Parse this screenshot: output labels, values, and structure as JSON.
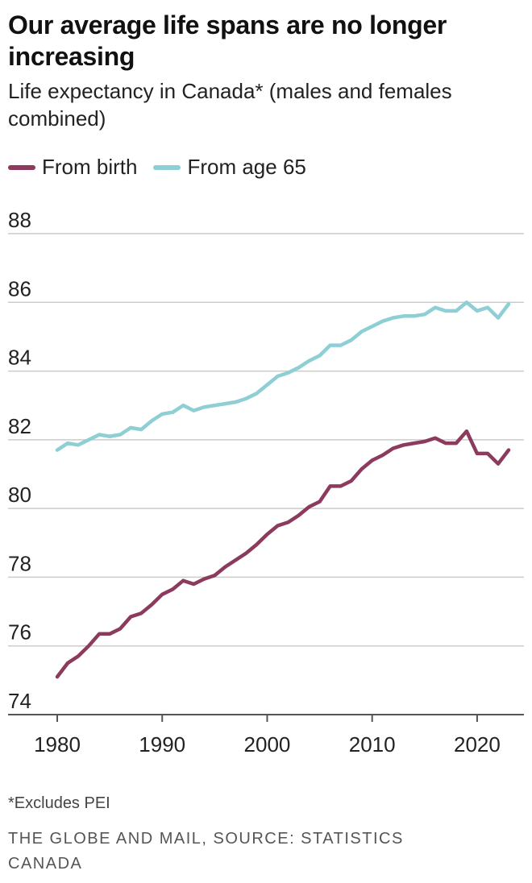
{
  "title": "Our average life spans are no longer increasing",
  "subtitle": "Life expectancy in Canada* (males and females combined)",
  "footnote": "*Excludes PEI",
  "source": "THE GLOBE AND MAIL, SOURCE: STATISTICS CANADA",
  "colors": {
    "birth": "#8c3b5e",
    "age65": "#8ecfd6",
    "grid": "#cccccc",
    "axis": "#555555"
  },
  "chart_data": {
    "type": "line",
    "title": "Our average life spans are no longer increasing",
    "subtitle": "Life expectancy in Canada* (males and females combined)",
    "xlabel": "",
    "ylabel": "",
    "xlim": [
      1980,
      2023
    ],
    "ylim": [
      74,
      88
    ],
    "x_ticks": [
      1980,
      1990,
      2000,
      2010,
      2020
    ],
    "y_ticks": [
      74,
      76,
      78,
      80,
      82,
      84,
      86,
      88
    ],
    "grid": true,
    "legend_position": "top-left",
    "x": [
      1980,
      1981,
      1982,
      1983,
      1984,
      1985,
      1986,
      1987,
      1988,
      1989,
      1990,
      1991,
      1992,
      1993,
      1994,
      1995,
      1996,
      1997,
      1998,
      1999,
      2000,
      2001,
      2002,
      2003,
      2004,
      2005,
      2006,
      2007,
      2008,
      2009,
      2010,
      2011,
      2012,
      2013,
      2014,
      2015,
      2016,
      2017,
      2018,
      2019,
      2020,
      2021,
      2022,
      2023
    ],
    "series": [
      {
        "name": "From birth",
        "color": "#8c3b5e",
        "values": [
          75.1,
          75.5,
          75.7,
          76.0,
          76.35,
          76.35,
          76.5,
          76.85,
          76.95,
          77.2,
          77.5,
          77.65,
          77.9,
          77.8,
          77.95,
          78.05,
          78.3,
          78.5,
          78.7,
          78.95,
          79.25,
          79.5,
          79.6,
          79.8,
          80.05,
          80.2,
          80.65,
          80.65,
          80.8,
          81.15,
          81.4,
          81.55,
          81.75,
          81.85,
          81.9,
          81.95,
          82.05,
          81.9,
          81.9,
          82.25,
          81.6,
          81.6,
          81.3,
          81.7
        ]
      },
      {
        "name": "From age 65",
        "color": "#8ecfd6",
        "values": [
          81.7,
          81.9,
          81.85,
          82.0,
          82.15,
          82.1,
          82.15,
          82.35,
          82.3,
          82.55,
          82.75,
          82.8,
          83.0,
          82.85,
          82.95,
          83.0,
          83.05,
          83.1,
          83.2,
          83.35,
          83.6,
          83.85,
          83.95,
          84.1,
          84.3,
          84.45,
          84.75,
          84.75,
          84.9,
          85.15,
          85.3,
          85.45,
          85.55,
          85.6,
          85.6,
          85.65,
          85.85,
          85.75,
          85.75,
          86.0,
          85.75,
          85.85,
          85.55,
          85.95
        ]
      }
    ]
  }
}
